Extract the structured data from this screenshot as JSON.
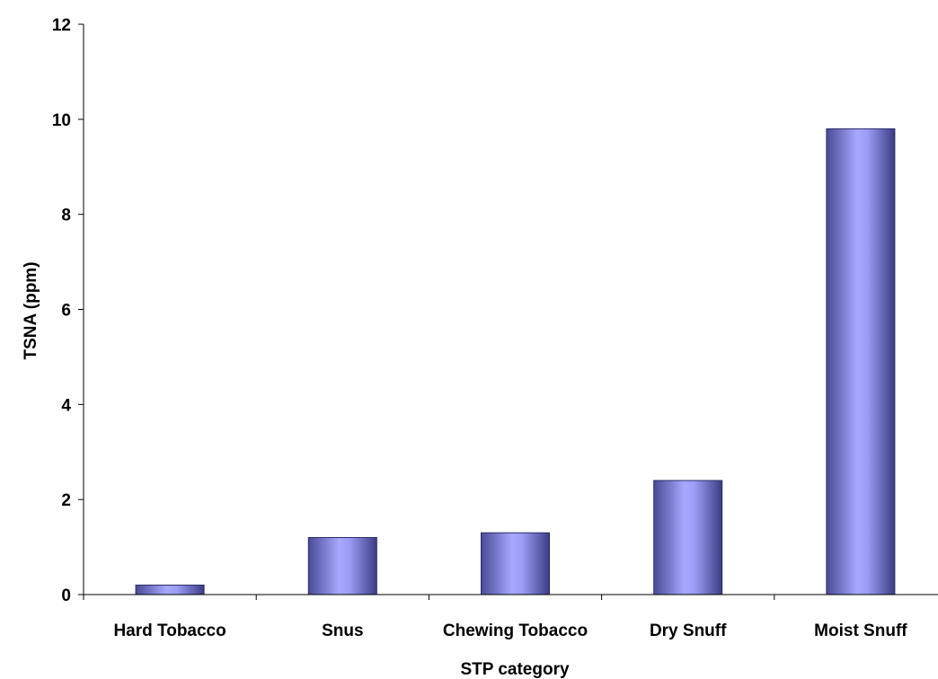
{
  "chart_data": {
    "type": "bar",
    "categories": [
      "Hard Tobacco",
      "Snus",
      "Chewing Tobacco",
      "Dry Snuff",
      "Moist Snuff"
    ],
    "values": [
      0.2,
      1.2,
      1.3,
      2.4,
      9.8
    ],
    "title": "",
    "xlabel": "STP category",
    "ylabel": "TSNA (ppm)",
    "ylim": [
      0,
      12
    ],
    "yticks": [
      0,
      2,
      4,
      6,
      8,
      10,
      12
    ],
    "grid": false,
    "legend": "none",
    "colors": {
      "bar_edge": "#2a2a6a",
      "bar_dark": "#4a4a96",
      "bar_light": "#a8a8ff",
      "axis": "#000000"
    }
  }
}
